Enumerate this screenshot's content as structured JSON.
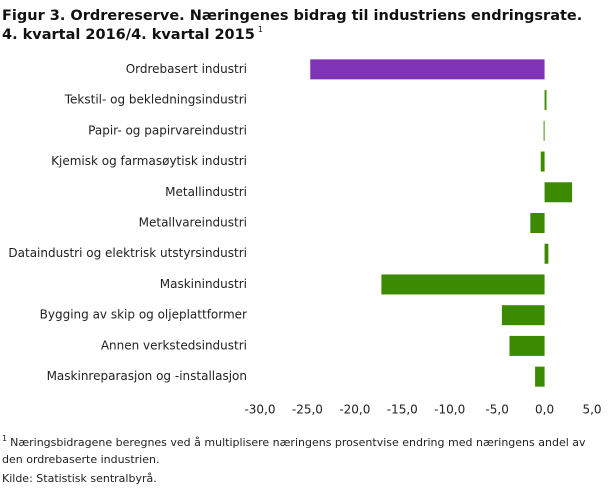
{
  "chart_data": {
    "type": "barh",
    "title": "Figur 3. Ordrereserve. Næringenes bidrag til industriens endringsrate.",
    "subtitle": "4. kvartal 2016/4. kvartal 2015",
    "subtitle_note": "1",
    "categories": [
      "Ordrebasert industri",
      "Tekstil- og bekledningsindustri",
      "Papir- og papirvareindustri",
      "Kjemisk og farmasøytisk industri",
      "Metallindustri",
      "Metallvareindustri",
      "Dataindustri og elektrisk utstyrsindustri",
      "Maskinindustri",
      "Bygging av skip og oljeplattformer",
      "Annen verkstedsindustri",
      "Maskinreparasjon og -installasjon"
    ],
    "values": [
      -24.7,
      0.2,
      -0.1,
      -0.4,
      2.9,
      -1.5,
      0.4,
      -17.2,
      -4.5,
      -3.7,
      -1.0
    ],
    "colors": [
      "#7f34b5",
      "#3b8a00",
      "#3b8a00",
      "#3b8a00",
      "#3b8a00",
      "#3b8a00",
      "#3b8a00",
      "#3b8a00",
      "#3b8a00",
      "#3b8a00",
      "#3b8a00"
    ],
    "xlim": [
      -30,
      5
    ],
    "xticks": [
      {
        "value": -30,
        "label": "-30,0"
      },
      {
        "value": -25,
        "label": "-25,0"
      },
      {
        "value": -20,
        "label": "-20,0"
      },
      {
        "value": -15,
        "label": "-15,0"
      },
      {
        "value": -10,
        "label": "-10,0"
      },
      {
        "value": -5,
        "label": "-5,0"
      },
      {
        "value": 0,
        "label": "0,0"
      },
      {
        "value": 5,
        "label": "5,0"
      }
    ],
    "footnote_marker": "1",
    "footnote": [
      "Næringsbidragene beregnes ved å multiplisere næringens prosentvise endring med næringens andel av",
      "den ordrebaserte industrien."
    ],
    "source": "Kilde: Statistisk sentralbyrå."
  }
}
